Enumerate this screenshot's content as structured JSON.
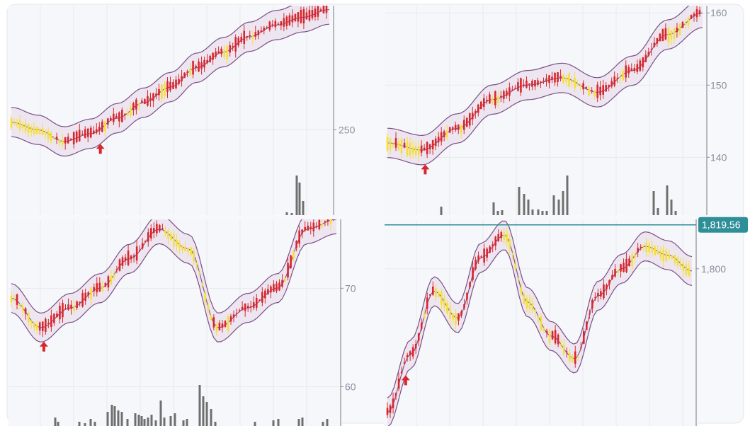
{
  "colors": {
    "up_candle": "#d9262c",
    "down_candle": "#f5df3a",
    "volume": "#6f6f6f",
    "band_line": "#7a4f86",
    "band_fill": "#ece3ef",
    "grid": "#e7e9ef",
    "panel_bg": "#f6f7fa",
    "price_line": "#2f8f98",
    "buy_arrow": "#d9262c",
    "axis_line": "#8d8f96"
  },
  "chart_data": [
    {
      "type": "candlestick",
      "panel": "top-left",
      "y_tick_labels": [
        "250"
      ],
      "y_ticks": [
        250
      ],
      "ylim": [
        228,
        282
      ],
      "signal_arrow": "buy",
      "series": [
        {
          "name": "",
          "points": [
            {
              "x": 0,
              "y": 252
            },
            {
              "x": 3,
              "y": 250
            },
            {
              "x": 6,
              "y": 247
            },
            {
              "x": 9,
              "y": 249
            },
            {
              "x": 12,
              "y": 253
            },
            {
              "x": 15,
              "y": 257
            },
            {
              "x": 18,
              "y": 261
            },
            {
              "x": 21,
              "y": 266
            },
            {
              "x": 24,
              "y": 270
            },
            {
              "x": 27,
              "y": 274
            },
            {
              "x": 30,
              "y": 277
            },
            {
              "x": 33,
              "y": 279
            },
            {
              "x": 36,
              "y": 281
            }
          ]
        }
      ]
    },
    {
      "type": "candlestick",
      "panel": "top-right",
      "y_tick_labels": [
        "140",
        "150",
        "160"
      ],
      "y_ticks": [
        140,
        150,
        160
      ],
      "ylim": [
        132,
        161
      ],
      "signal_arrow": "buy",
      "series": [
        {
          "name": "",
          "points": [
            {
              "x": 0,
              "y": 142
            },
            {
              "x": 4,
              "y": 141
            },
            {
              "x": 8,
              "y": 144
            },
            {
              "x": 12,
              "y": 148
            },
            {
              "x": 16,
              "y": 150
            },
            {
              "x": 20,
              "y": 151
            },
            {
              "x": 24,
              "y": 149
            },
            {
              "x": 28,
              "y": 152
            },
            {
              "x": 32,
              "y": 157
            },
            {
              "x": 36,
              "y": 160
            }
          ]
        }
      ]
    },
    {
      "type": "candlestick",
      "panel": "bottom-left",
      "y_tick_labels": [
        "60",
        "70"
      ],
      "y_ticks": [
        60,
        70
      ],
      "ylim": [
        56,
        77
      ],
      "signal_arrow": "buy",
      "series": [
        {
          "name": "",
          "points": [
            {
              "x": 0,
              "y": 69
            },
            {
              "x": 3,
              "y": 66
            },
            {
              "x": 6,
              "y": 68
            },
            {
              "x": 9,
              "y": 70
            },
            {
              "x": 12,
              "y": 73
            },
            {
              "x": 15,
              "y": 76
            },
            {
              "x": 18,
              "y": 74
            },
            {
              "x": 21,
              "y": 66
            },
            {
              "x": 24,
              "y": 68
            },
            {
              "x": 27,
              "y": 70
            },
            {
              "x": 30,
              "y": 76
            },
            {
              "x": 33,
              "y": 77
            }
          ]
        }
      ]
    },
    {
      "type": "candlestick",
      "panel": "bottom-right",
      "y_tick_labels": [
        "1,800"
      ],
      "y_ticks": [
        1800
      ],
      "ylim": [
        1730,
        1822
      ],
      "last_price_label": "1,819.56",
      "last_price": 1819.56,
      "signal_arrow": "buy",
      "series": [
        {
          "name": "",
          "points": [
            {
              "x": 0,
              "y": 1736
            },
            {
              "x": 3,
              "y": 1762
            },
            {
              "x": 6,
              "y": 1790
            },
            {
              "x": 9,
              "y": 1778
            },
            {
              "x": 12,
              "y": 1805
            },
            {
              "x": 15,
              "y": 1815
            },
            {
              "x": 18,
              "y": 1785
            },
            {
              "x": 21,
              "y": 1770
            },
            {
              "x": 24,
              "y": 1760
            },
            {
              "x": 27,
              "y": 1788
            },
            {
              "x": 30,
              "y": 1800
            },
            {
              "x": 33,
              "y": 1810
            },
            {
              "x": 36,
              "y": 1806
            },
            {
              "x": 39,
              "y": 1799
            }
          ]
        }
      ]
    }
  ]
}
